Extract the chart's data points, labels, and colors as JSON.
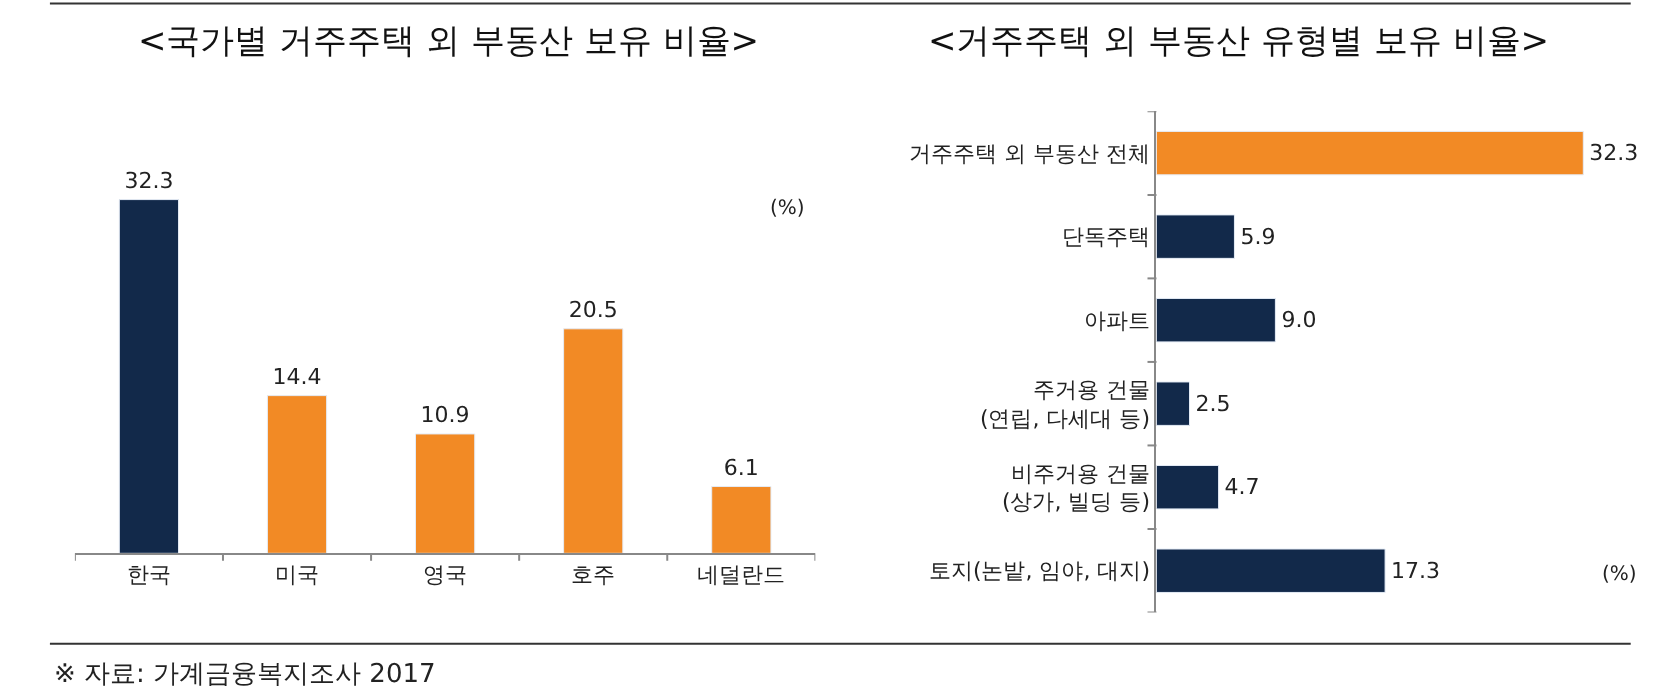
{
  "chart_data": [
    {
      "type": "bar",
      "title": "<국가별 거주주택 외 부동산 보유 비율>",
      "categories": [
        "한국",
        "미국",
        "영국",
        "호주",
        "네덜란드"
      ],
      "values": [
        32.3,
        14.4,
        10.9,
        20.5,
        6.1
      ],
      "colors": [
        "#12294a",
        "#f28a25",
        "#f28a25",
        "#f28a25",
        "#f28a25"
      ],
      "value_labels": [
        "32.3",
        "14.4",
        "10.9",
        "20.5",
        "6.1"
      ],
      "annotations": [
        "(%)",
        "※ 자료: 가계금융복지조사 2017"
      ]
    },
    {
      "type": "bar",
      "orientation": "horizontal",
      "title": "<거주주택 외 부동산 유형별 보유 비율>",
      "categories": [
        "거주주택 외 부동산 전체",
        "단독주택",
        "아파트",
        "주거용 건물\n(연립, 다세대 등)",
        "비주거용 건물\n(상가, 빌딩 등)",
        "토지(논밭, 임야, 대지)"
      ],
      "values": [
        32.3,
        5.9,
        9.0,
        2.5,
        4.7,
        17.3
      ],
      "colors": [
        "#f28a25",
        "#12294a",
        "#12294a",
        "#12294a",
        "#12294a",
        "#12294a"
      ],
      "value_labels": [
        "32.3",
        "5.9",
        "9.0",
        "2.5",
        "4.7",
        "17.3"
      ],
      "annotations": [
        "(%)"
      ]
    }
  ]
}
